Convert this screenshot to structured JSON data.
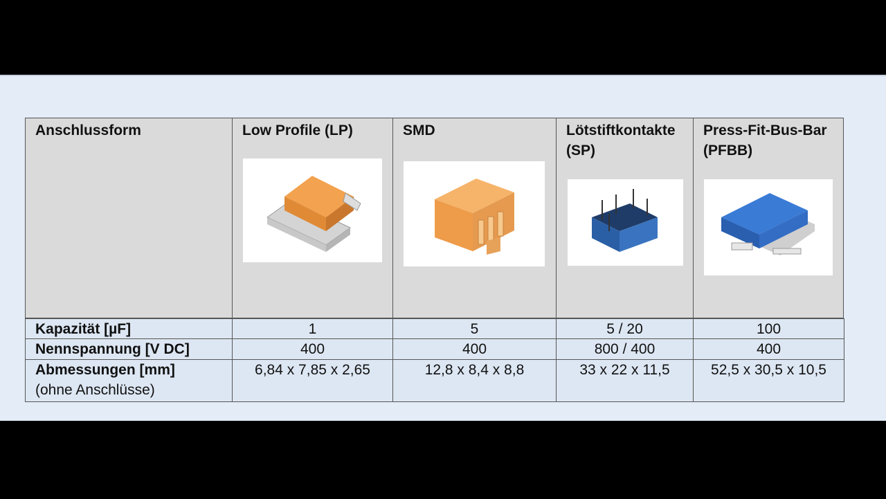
{
  "table": {
    "header": [
      "Anschlussform",
      "Low Profile (LP)",
      "SMD",
      "Lötstiftkontakte (SP)",
      "Press-Fit-Bus-Bar (PFBB)"
    ],
    "rows": [
      {
        "label": "Kapazität [µF]",
        "cells": [
          "1",
          "5",
          "5 / 20",
          "100"
        ]
      },
      {
        "label": "Nennspannung [V DC]",
        "cells": [
          "400",
          "400",
          "800 / 400",
          "400"
        ]
      },
      {
        "label": "Abmessungen [mm]",
        "note": "(ohne Anschlüsse)",
        "cells": [
          "6,84 x 7,85 x 2,65",
          "12,8 x 8,4 x 8,8",
          "33 x 22 x 11,5",
          "52,5 x 30,5 x 10,5"
        ]
      }
    ]
  }
}
